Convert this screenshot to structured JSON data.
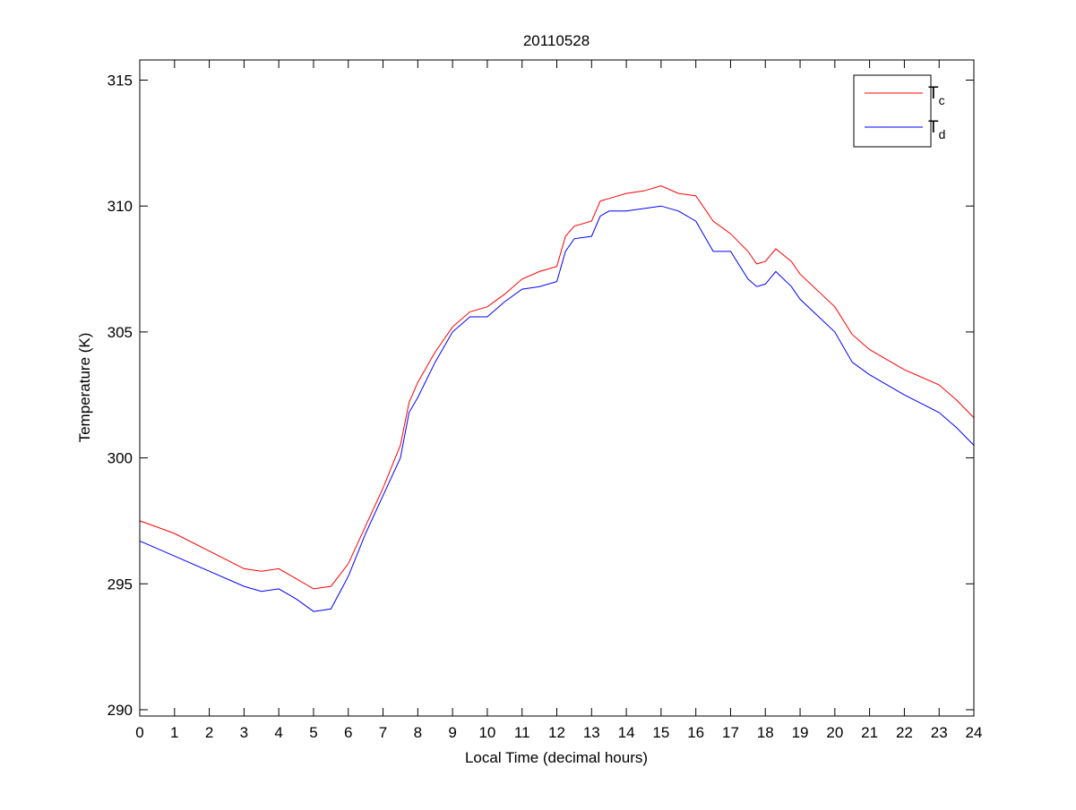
{
  "chart_data": {
    "type": "line",
    "title": "20110528",
    "xlabel": "Local Time (decimal hours)",
    "ylabel": "Temperature (K)",
    "xlim": [
      0,
      24
    ],
    "ylim": [
      289.75,
      315.8
    ],
    "xticks": [
      0,
      1,
      2,
      3,
      4,
      5,
      6,
      7,
      8,
      9,
      10,
      11,
      12,
      13,
      14,
      15,
      16,
      17,
      18,
      19,
      20,
      21,
      22,
      23,
      24
    ],
    "yticks": [
      290,
      295,
      300,
      305,
      310,
      315
    ],
    "grid": false,
    "legend_position": "top-right",
    "x": [
      0,
      1,
      2,
      3,
      3.5,
      4,
      4.5,
      5,
      5.5,
      6,
      6.5,
      7,
      7.5,
      7.75,
      8,
      8.5,
      9,
      9.5,
      10,
      10.5,
      11,
      11.5,
      12,
      12.25,
      12.5,
      13,
      13.25,
      13.5,
      14,
      14.5,
      15,
      15.5,
      16,
      16.5,
      17,
      17.5,
      17.75,
      18,
      18.3,
      18.75,
      19,
      20,
      20.5,
      21,
      22,
      23,
      23.5,
      24
    ],
    "series": [
      {
        "name": "T",
        "subscript": "c",
        "color": "#ff0000",
        "values": [
          297.5,
          297.0,
          296.3,
          295.6,
          295.5,
          295.6,
          295.2,
          294.8,
          294.9,
          295.8,
          297.3,
          298.8,
          300.5,
          302.2,
          303.0,
          304.2,
          305.2,
          305.8,
          306.0,
          306.5,
          307.1,
          307.4,
          307.6,
          308.8,
          309.2,
          309.4,
          310.2,
          310.3,
          310.5,
          310.6,
          310.8,
          310.5,
          310.4,
          309.4,
          308.9,
          308.2,
          307.7,
          307.8,
          308.3,
          307.8,
          307.3,
          306.0,
          304.9,
          304.3,
          303.5,
          302.9,
          302.3,
          301.6
        ]
      },
      {
        "name": "T",
        "subscript": "d",
        "color": "#0000ff",
        "values": [
          296.7,
          296.1,
          295.5,
          294.9,
          294.7,
          294.8,
          294.4,
          293.9,
          294.0,
          295.3,
          297.0,
          298.5,
          300.0,
          301.8,
          302.4,
          303.8,
          305.0,
          305.6,
          305.6,
          306.2,
          306.7,
          306.8,
          307.0,
          308.2,
          308.7,
          308.8,
          309.6,
          309.8,
          309.8,
          309.9,
          310.0,
          309.8,
          309.4,
          308.2,
          308.2,
          307.1,
          306.8,
          306.9,
          307.4,
          306.8,
          306.3,
          305.0,
          303.8,
          303.3,
          302.5,
          301.8,
          301.2,
          300.5
        ]
      }
    ]
  }
}
